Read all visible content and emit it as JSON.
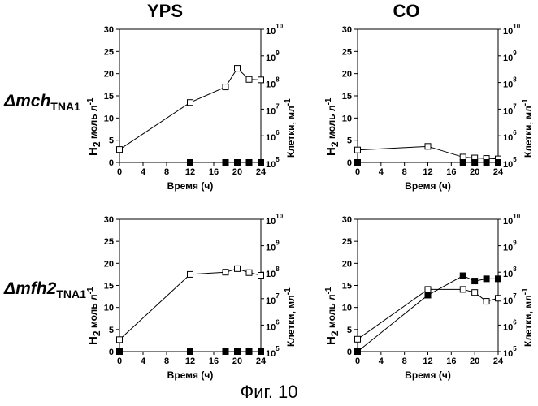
{
  "figure_caption": "Фиг. 10",
  "column_titles": [
    "YPS",
    "CO"
  ],
  "row_labels": [
    {
      "delta": "Δ",
      "gene": "mch",
      "subscript": "TNA1"
    },
    {
      "delta": "Δ",
      "gene": "mfh2",
      "subscript": "TNA1"
    }
  ],
  "chart_data": [
    {
      "type": "line",
      "panel": "mch-YPS",
      "xlabel": "Время (ч)",
      "ylabel": {
        "main": "H",
        "sub": "2",
        "rest": " моль л",
        "sup": "-1"
      },
      "y2label": {
        "main": "Клетки, мл",
        "sup": "-1"
      },
      "x_ticks": [
        0,
        4,
        8,
        12,
        16,
        20,
        24
      ],
      "y_ticks": [
        0,
        5,
        10,
        15,
        20,
        25,
        30
      ],
      "y2_ticks": [
        {
          "base": "10",
          "exp": "10"
        },
        {
          "base": "10",
          "exp": "9"
        },
        {
          "base": "10",
          "exp": "8"
        },
        {
          "base": "10",
          "exp": "7"
        },
        {
          "base": "10",
          "exp": "6"
        },
        {
          "base": "10",
          "exp": "5"
        }
      ],
      "xlim": [
        0,
        24
      ],
      "ylim": [
        0,
        30
      ],
      "series": [
        {
          "name": "cells",
          "marker": "open-square",
          "x": [
            0,
            12,
            18,
            20,
            22,
            24
          ],
          "values": [
            2.9,
            13.5,
            17.0,
            21.2,
            18.7,
            18.6
          ]
        },
        {
          "name": "H2",
          "marker": "filled-square",
          "x": [
            12,
            18,
            20,
            22,
            24
          ],
          "values": [
            0,
            0,
            0,
            0,
            0
          ]
        }
      ]
    },
    {
      "type": "line",
      "panel": "mch-CO",
      "xlabel": "Время (ч)",
      "ylabel": {
        "main": "H",
        "sub": "2",
        "rest": " моль л",
        "sup": "-1"
      },
      "y2label": {
        "main": "Клетки, мл",
        "sup": "-1"
      },
      "x_ticks": [
        0,
        4,
        8,
        12,
        16,
        20,
        24
      ],
      "y_ticks": [
        0,
        5,
        10,
        15,
        20,
        25,
        30
      ],
      "y2_ticks": [
        {
          "base": "10",
          "exp": "10"
        },
        {
          "base": "10",
          "exp": "9"
        },
        {
          "base": "10",
          "exp": "8"
        },
        {
          "base": "10",
          "exp": "7"
        },
        {
          "base": "10",
          "exp": "6"
        },
        {
          "base": "10",
          "exp": "5"
        }
      ],
      "xlim": [
        0,
        24
      ],
      "ylim": [
        0,
        30
      ],
      "series": [
        {
          "name": "cells",
          "marker": "open-square",
          "x": [
            0,
            12,
            18,
            20,
            22,
            24
          ],
          "values": [
            2.8,
            3.6,
            1.2,
            1.0,
            0.9,
            0.8
          ]
        },
        {
          "name": "H2",
          "marker": "filled-square",
          "x": [
            0,
            18,
            20,
            22,
            24
          ],
          "values": [
            0,
            0,
            0,
            0,
            0
          ]
        }
      ]
    },
    {
      "type": "line",
      "panel": "mfh2-YPS",
      "xlabel": "Время (ч)",
      "ylabel": {
        "main": "H",
        "sub": "2",
        "rest": " моль л",
        "sup": "-1"
      },
      "y2label": {
        "main": "Клетки, мл",
        "sup": "-1"
      },
      "x_ticks": [
        0,
        4,
        8,
        12,
        16,
        20,
        24
      ],
      "y_ticks": [
        0,
        5,
        10,
        15,
        20,
        25,
        30
      ],
      "y2_ticks": [
        {
          "base": "10",
          "exp": "10"
        },
        {
          "base": "10",
          "exp": "9"
        },
        {
          "base": "10",
          "exp": "8"
        },
        {
          "base": "10",
          "exp": "7"
        },
        {
          "base": "10",
          "exp": "6"
        },
        {
          "base": "10",
          "exp": "5"
        }
      ],
      "xlim": [
        0,
        24
      ],
      "ylim": [
        0,
        30
      ],
      "series": [
        {
          "name": "cells",
          "marker": "open-square",
          "x": [
            0,
            12,
            18,
            20,
            22,
            24
          ],
          "values": [
            2.7,
            17.5,
            18.0,
            18.8,
            17.9,
            17.3
          ]
        },
        {
          "name": "H2",
          "marker": "filled-square",
          "x": [
            0,
            12,
            18,
            20,
            22,
            24
          ],
          "values": [
            0,
            0,
            0,
            0,
            0,
            0
          ]
        }
      ]
    },
    {
      "type": "line",
      "panel": "mfh2-CO",
      "xlabel": "Время (ч)",
      "ylabel": {
        "main": "H",
        "sub": "2",
        "rest": " моль л",
        "sup": "-1"
      },
      "y2label": {
        "main": "Клетки, мл",
        "sup": "-1"
      },
      "x_ticks": [
        0,
        4,
        8,
        12,
        16,
        20,
        24
      ],
      "y_ticks": [
        0,
        5,
        10,
        15,
        20,
        25,
        30
      ],
      "y2_ticks": [
        {
          "base": "10",
          "exp": "10"
        },
        {
          "base": "10",
          "exp": "9"
        },
        {
          "base": "10",
          "exp": "8"
        },
        {
          "base": "10",
          "exp": "7"
        },
        {
          "base": "10",
          "exp": "6"
        },
        {
          "base": "10",
          "exp": "5"
        }
      ],
      "xlim": [
        0,
        24
      ],
      "ylim": [
        0,
        30
      ],
      "series": [
        {
          "name": "cells",
          "marker": "open-square",
          "x": [
            0,
            12,
            18,
            20,
            22,
            24
          ],
          "values": [
            2.8,
            14.1,
            14.1,
            13.4,
            11.4,
            12.1
          ]
        },
        {
          "name": "H2",
          "marker": "filled-square",
          "x": [
            0,
            12,
            18,
            20,
            22,
            24
          ],
          "values": [
            0,
            12.8,
            17.2,
            16.0,
            16.5,
            16.5
          ]
        }
      ]
    }
  ]
}
